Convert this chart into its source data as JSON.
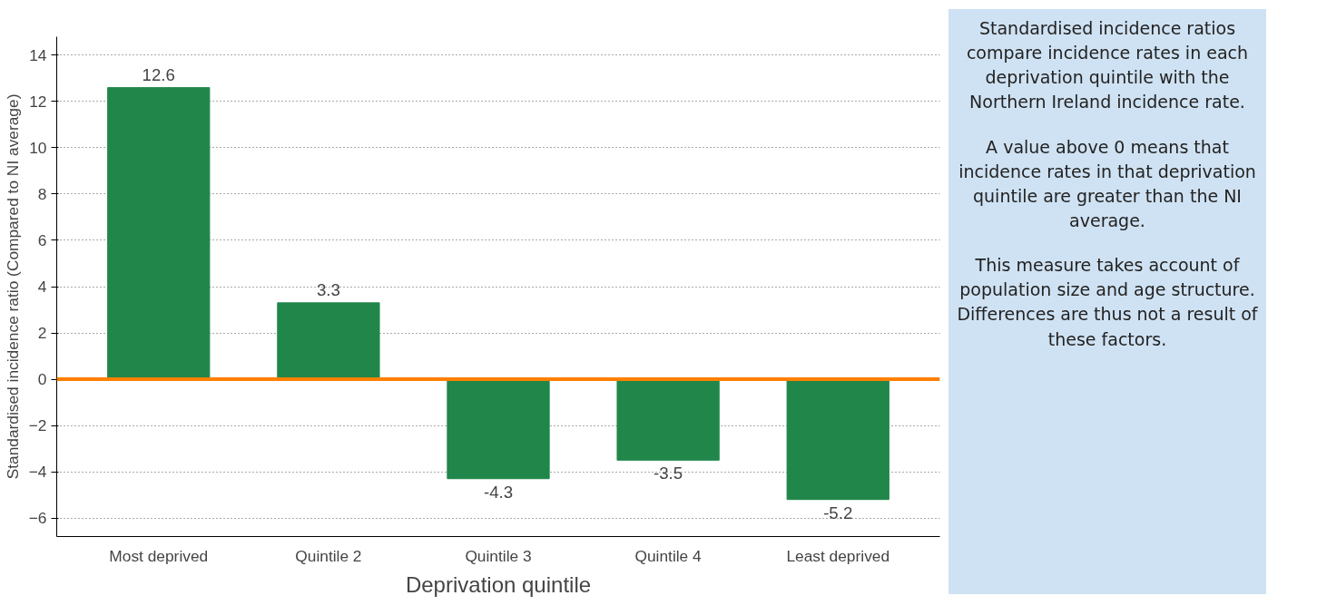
{
  "chart_data": {
    "type": "bar",
    "xlabel": "Deprivation quintile",
    "ylabel": "Standardised incidence ratio (Compared to NI average)",
    "categories": [
      "Most deprived",
      "Quintile 2",
      "Quintile 3",
      "Quintile 4",
      "Least deprived"
    ],
    "values": [
      12.6,
      3.3,
      -4.3,
      -3.5,
      -5.2
    ],
    "color": "#21864a",
    "data_labels": true,
    "ylim": [
      -6.8,
      14.8
    ],
    "yticks": [
      -6,
      -4,
      -2,
      0,
      2,
      4,
      6,
      8,
      10,
      12,
      14
    ],
    "grid": "y",
    "ref_lines": [
      {
        "axis": "y",
        "value": 0,
        "color": "#ff8000"
      }
    ],
    "annotations": [
      "Standardised incidence ratios compare incidence rates in each deprivation quintile with the Northern Ireland incidence rate.",
      "A value above 0 means that incidence rates in that deprivation quintile are greater than the NI average.",
      "This measure takes account of population size and age structure. Differences are thus not a result of these factors."
    ]
  }
}
